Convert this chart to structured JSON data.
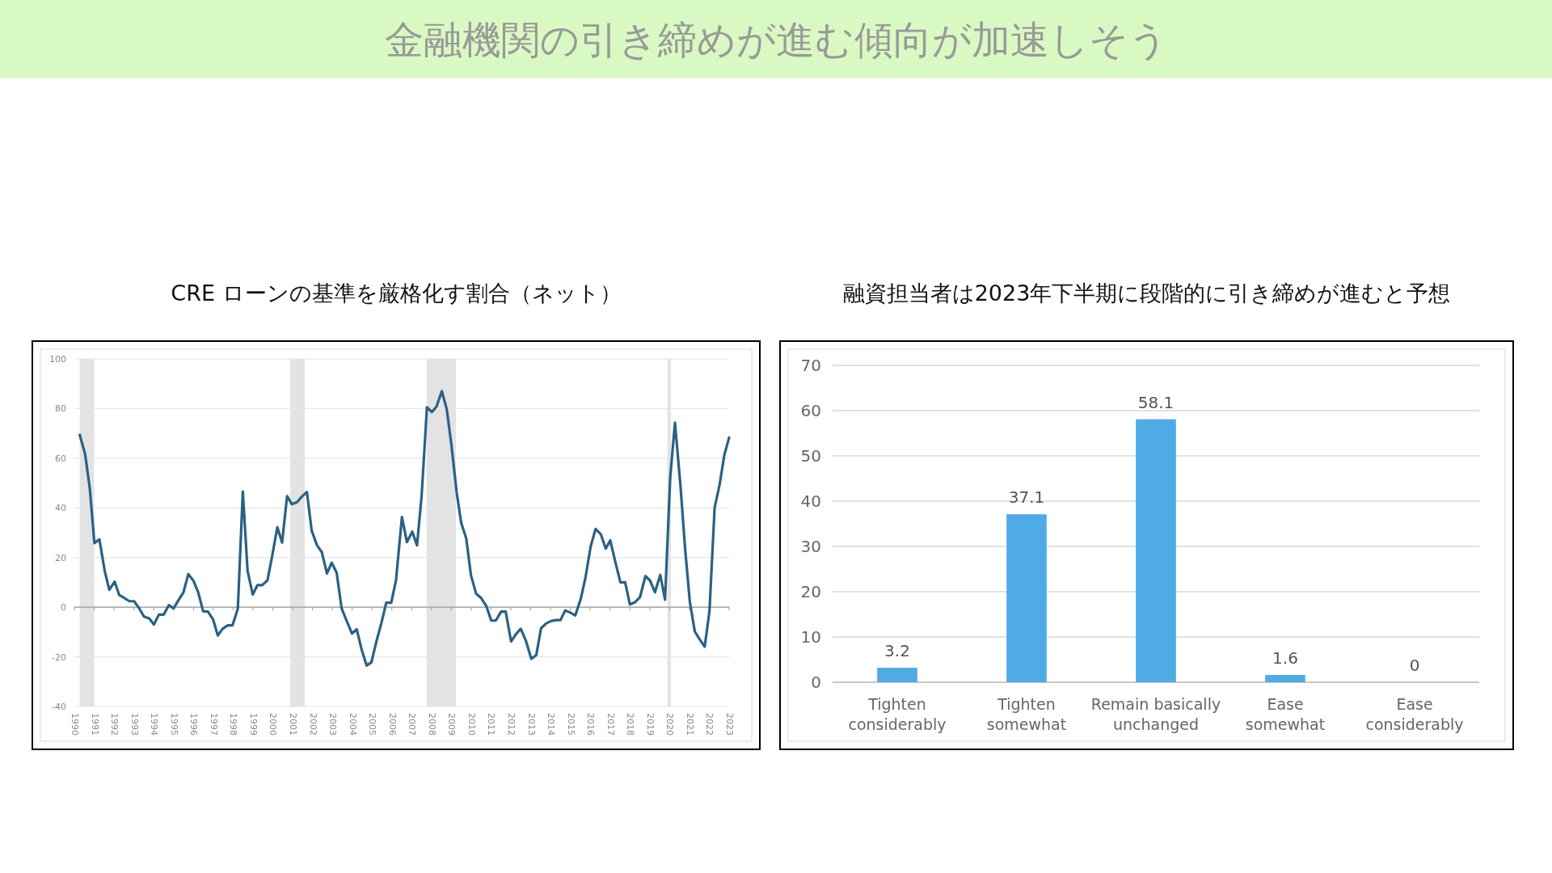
{
  "chart_data": [
    {
      "type": "other",
      "title": "金融機関の引き締めが進む傾向が加速しそう"
    },
    {
      "type": "line",
      "title": "CRE ローンの基準を厳格化す割合（ネット）",
      "xlim": [
        1990,
        2023
      ],
      "xticks": [
        1990,
        1991,
        1992,
        1993,
        1994,
        1995,
        1996,
        1997,
        1998,
        1999,
        2000,
        2001,
        2002,
        2003,
        2004,
        2005,
        2006,
        2007,
        2008,
        2009,
        2010,
        2011,
        2012,
        2013,
        2014,
        2015,
        2016,
        2017,
        2018,
        2019,
        2020,
        2021,
        2022,
        2023
      ],
      "ylim": [
        -40,
        100
      ],
      "yticks": [
        -40,
        -20,
        0,
        20,
        40,
        60,
        80,
        100
      ],
      "grid": "y",
      "bands": [
        {
          "axis": "x",
          "from": 1990.27,
          "to": 1991.0,
          "color": "#e3e3e3"
        },
        {
          "axis": "x",
          "from": 2000.88,
          "to": 2001.61,
          "color": "#e3e3e3"
        },
        {
          "axis": "x",
          "from": 2007.75,
          "to": 2009.23,
          "color": "#e3e3e3"
        },
        {
          "axis": "x",
          "from": 2019.89,
          "to": 2020.07,
          "color": "#e3e3e3"
        }
      ],
      "series": [
        {
          "color": "#2a6185",
          "x": [
            1990.27,
            1990.54,
            1990.78,
            1991.01,
            1991.26,
            1991.53,
            1991.76,
            1992.03,
            1992.26,
            1992.5,
            1992.77,
            1993.01,
            1993.27,
            1993.51,
            1993.78,
            1994.01,
            1994.26,
            1994.5,
            1994.76,
            1995.0,
            1995.24,
            1995.5,
            1995.74,
            1995.99,
            1996.24,
            1996.49,
            1996.73,
            1996.99,
            1997.23,
            1997.47,
            1997.73,
            1997.97,
            1998.24,
            1998.49,
            1998.73,
            1998.99,
            1999.23,
            1999.47,
            1999.73,
            1999.97,
            2000.23,
            2000.47,
            2000.72,
            2000.96,
            2001.22,
            2001.46,
            2001.72,
            2001.96,
            2002.23,
            2002.47,
            2002.73,
            2002.97,
            2003.22,
            2003.47,
            2003.72,
            2003.99,
            2004.23,
            2004.49,
            2004.73,
            2004.97,
            2005.23,
            2005.47,
            2005.72,
            2005.97,
            2006.21,
            2006.51,
            2006.76,
            2007.03,
            2007.27,
            2007.5,
            2007.77,
            2008.02,
            2008.25,
            2008.52,
            2008.77,
            2009.0,
            2009.27,
            2009.5,
            2009.75,
            2009.99,
            2010.25,
            2010.49,
            2010.76,
            2011.01,
            2011.24,
            2011.51,
            2011.74,
            2012.01,
            2012.26,
            2012.5,
            2012.76,
            2013.03,
            2013.28,
            2013.52,
            2013.79,
            2014.02,
            2014.27,
            2014.5,
            2014.74,
            2015.0,
            2015.25,
            2015.52,
            2015.76,
            2016.02,
            2016.27,
            2016.54,
            2016.78,
            2017.01,
            2017.26,
            2017.52,
            2017.76,
            2018.0,
            2018.26,
            2018.51,
            2018.78,
            2019.01,
            2019.26,
            2019.53,
            2019.77,
            2020.03,
            2020.27,
            2020.55,
            2020.79,
            2021.02,
            2021.27,
            2021.52,
            2021.77,
            2022.01,
            2022.27,
            2022.52,
            2022.76,
            2023.0
          ],
          "values": [
            69.4,
            61.8,
            47.7,
            25.8,
            27.3,
            14.6,
            7.0,
            10.3,
            4.9,
            3.8,
            2.4,
            2.4,
            -0.5,
            -3.8,
            -4.6,
            -7.0,
            -3.0,
            -3.0,
            0.8,
            -0.5,
            2.7,
            6.0,
            13.3,
            10.8,
            6.0,
            -1.6,
            -1.8,
            -4.9,
            -11.4,
            -8.7,
            -7.3,
            -7.3,
            -0.5,
            46.6,
            14.6,
            5.1,
            8.9,
            8.9,
            10.8,
            20.6,
            32.2,
            26.0,
            44.7,
            41.5,
            42.3,
            44.5,
            46.4,
            30.9,
            24.9,
            22.2,
            13.6,
            17.9,
            13.9,
            -0.5,
            -5.4,
            -10.6,
            -8.9,
            -17.4,
            -23.5,
            -22.2,
            -13.6,
            -6.5,
            1.8,
            1.8,
            10.8,
            36.3,
            26.2,
            30.4,
            24.9,
            44.5,
            80.5,
            78.6,
            80.8,
            87.0,
            79.7,
            65.6,
            46.1,
            33.8,
            27.7,
            12.8,
            5.4,
            3.8,
            0.5,
            -5.4,
            -5.4,
            -1.8,
            -1.8,
            -13.8,
            -10.8,
            -8.7,
            -13.6,
            -20.8,
            -19.3,
            -8.5,
            -6.5,
            -5.6,
            -5.2,
            -5.2,
            -1.3,
            -2.2,
            -3.3,
            3.3,
            11.9,
            24.4,
            31.5,
            29.3,
            23.6,
            26.9,
            18.4,
            10.0,
            10.0,
            1.1,
            2.0,
            4.1,
            12.5,
            10.8,
            6.0,
            13.0,
            3.0,
            52.1,
            74.3,
            48.8,
            22.8,
            2.2,
            -9.8,
            -13.0,
            -15.9,
            -1.6,
            40.1,
            49.3,
            61.3,
            68.3
          ]
        }
      ]
    },
    {
      "type": "bar",
      "title": "融資担当者は2023年下半期に段階的に引き締めが進むと予想",
      "categories": [
        "Tighten considerably",
        "Tighten somewhat",
        "Remain basically unchanged",
        "Ease somewhat",
        "Ease considerably"
      ],
      "values": [
        3.2,
        37.1,
        58.1,
        1.6,
        0
      ],
      "color": "#4eabe6",
      "ylim": [
        0,
        70
      ],
      "yticks": [
        0,
        10,
        20,
        30,
        40,
        50,
        60,
        70
      ],
      "grid": "y",
      "data_labels": true
    }
  ]
}
